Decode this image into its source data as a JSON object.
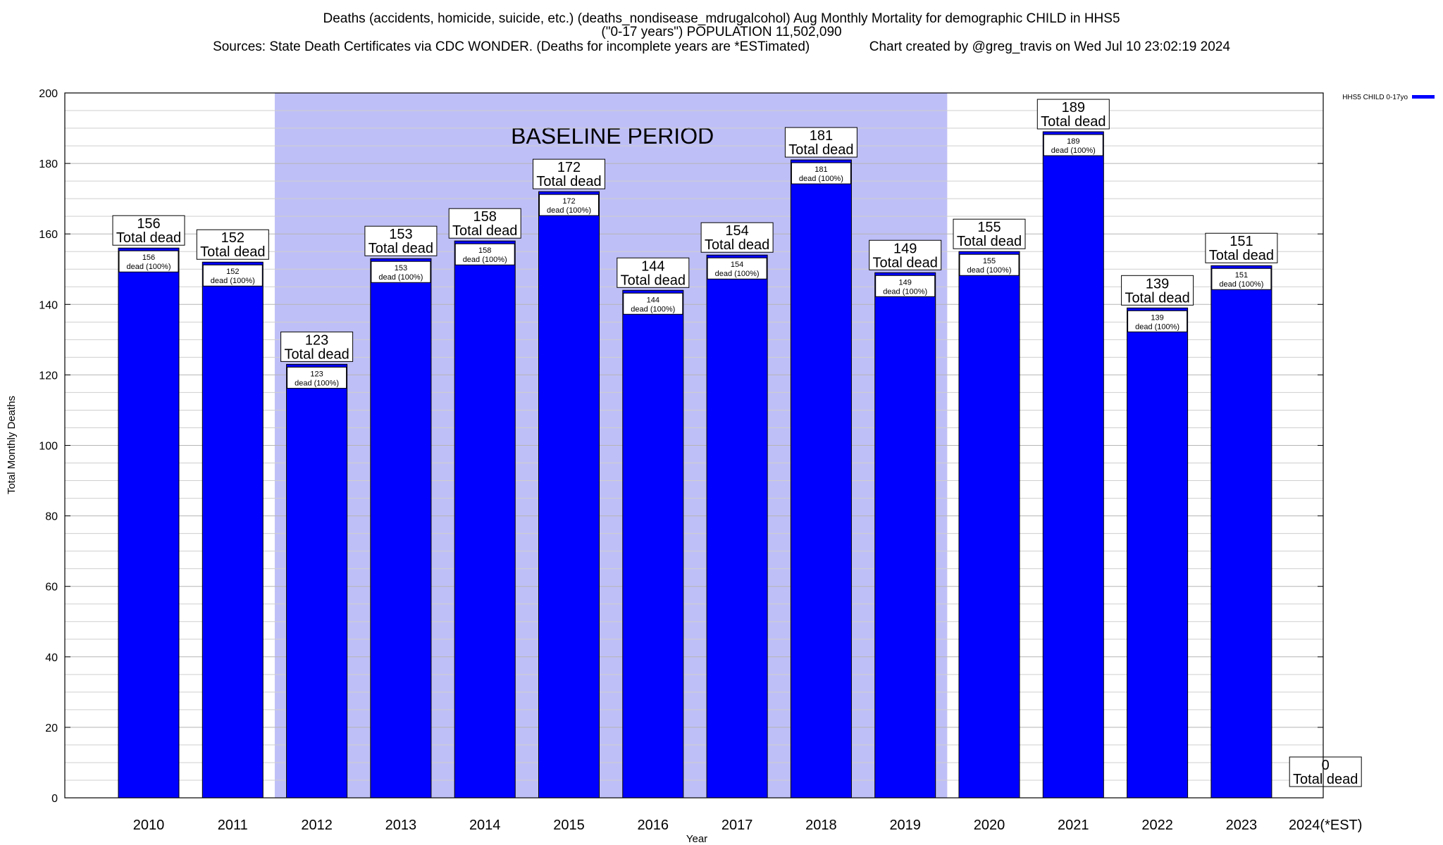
{
  "title_lines": [
    "Deaths (accidents, homicide, suicide, etc.) (deaths_nondisease_mdrugalcohol) Aug Monthly Mortality for demographic CHILD in HHS5",
    "(\"0-17 years\") POPULATION 11,502,090",
    "Sources: State Death Certificates via CDC WONDER. (Deaths for incomplete years are *ESTimated)                Chart created by @greg_travis on Wed Jul 10 23:02:19 2024"
  ],
  "chart_data": {
    "type": "bar",
    "categories": [
      "2010",
      "2011",
      "2012",
      "2013",
      "2014",
      "2015",
      "2016",
      "2017",
      "2018",
      "2019",
      "2020",
      "2021",
      "2022",
      "2023",
      "2024(*EST)"
    ],
    "series": [
      {
        "name": "HHS5 CHILD 0-17yo",
        "values": [
          156,
          152,
          123,
          153,
          158,
          172,
          144,
          154,
          181,
          149,
          155,
          189,
          139,
          151,
          0
        ],
        "color": "#0000ff"
      }
    ],
    "total_label": "Total dead",
    "inner_label": "dead (100%)",
    "xlabel": "Year",
    "ylabel": "Total Monthly Deaths",
    "ylim": [
      0,
      200
    ],
    "y_ticks": [
      0,
      20,
      40,
      60,
      80,
      100,
      120,
      140,
      160,
      180,
      200
    ],
    "minor_grid_step": 5,
    "grid": true,
    "baseline": {
      "label": "BASELINE PERIOD",
      "from_category": "2012",
      "to_category": "2019",
      "color": "#bfbff7"
    },
    "legend_placement": "top-right"
  }
}
